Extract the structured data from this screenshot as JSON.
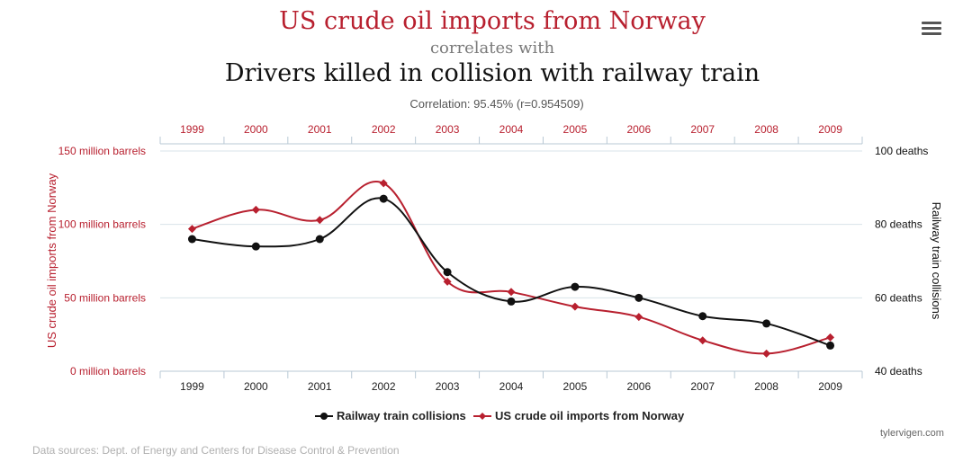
{
  "header": {
    "title_a": "US crude oil imports from Norway",
    "connector": "correlates with",
    "title_b": "Drivers killed in collision with railway train",
    "correlation": "Correlation: 95.45% (r=0.954509)"
  },
  "footer": {
    "source": "Data sources: Dept. of Energy and Centers for Disease Control & Prevention",
    "credit": "tylervigen.com"
  },
  "menu_icon": "hamburger-menu-icon",
  "chart_data": {
    "type": "line",
    "x": [
      "1999",
      "2000",
      "2001",
      "2002",
      "2003",
      "2004",
      "2005",
      "2006",
      "2007",
      "2008",
      "2009"
    ],
    "left_axis": {
      "label": "US crude oil imports from Norway",
      "ticks": [
        "0 million barrels",
        "50 million barrels",
        "100 million barrels",
        "150 million barrels"
      ],
      "range": [
        0,
        150
      ]
    },
    "right_axis": {
      "label": "Railway train collisions",
      "ticks": [
        "40 deaths",
        "60 deaths",
        "80 deaths",
        "100 deaths"
      ],
      "range": [
        40,
        100
      ]
    },
    "series": [
      {
        "name": "Railway train collisions",
        "axis": "right",
        "color": "#111111",
        "values": [
          76,
          74,
          76,
          87,
          67,
          59,
          63,
          60,
          55,
          53,
          47
        ]
      },
      {
        "name": "US crude oil imports from Norway",
        "axis": "left",
        "color": "#b8202f",
        "values": [
          97,
          110,
          103,
          128,
          61,
          54,
          44,
          37,
          21,
          12,
          23
        ]
      }
    ],
    "legend_position": "bottom-center",
    "grid": true
  }
}
